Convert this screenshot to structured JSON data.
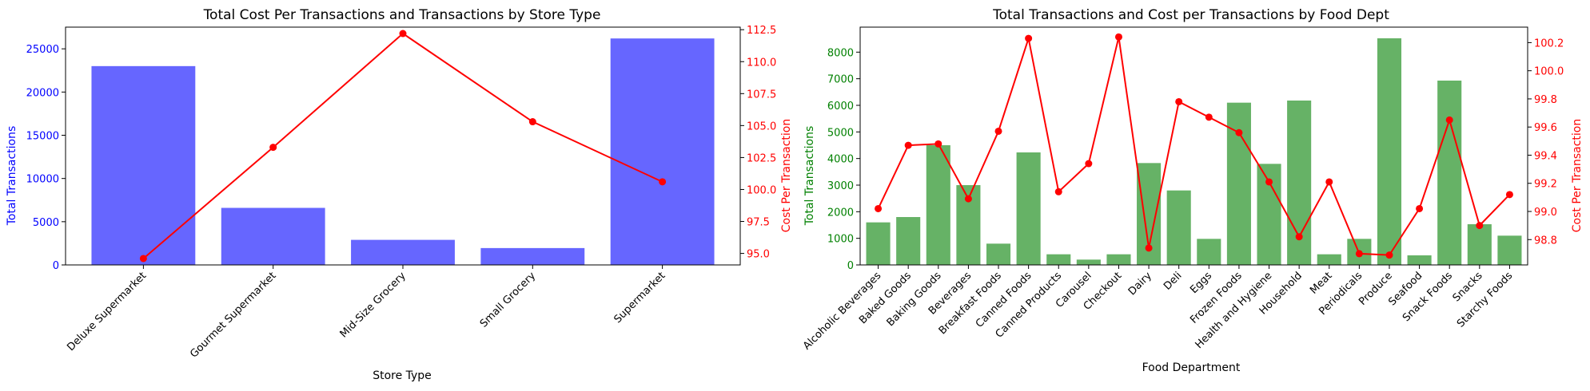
{
  "colors": {
    "bars_left": "#6666ff",
    "bars_right": "#66b266",
    "line": "#ff0000",
    "axis_left_text": "#0000ff",
    "axis_right_text": "#ff0000",
    "axis_left_text_right_panel": "#008000",
    "frame": "#000000"
  },
  "chart_data": [
    {
      "type": "bar",
      "title": "Total Cost Per Transactions and Transactions by Store Type",
      "xlabel": "Store Type",
      "ylabel": "Total Transactions",
      "y2label": "Cost Per Transaction",
      "categories": [
        "Deluxe Supermarket",
        "Gourmet Supermarket",
        "Mid-Size Grocery",
        "Small Grocery",
        "Supermarket"
      ],
      "bars": {
        "values": [
          23000,
          6600,
          2900,
          1950,
          26200
        ]
      },
      "line": {
        "values": [
          94.6,
          103.3,
          112.2,
          105.3,
          100.6
        ]
      },
      "ylim": [
        0,
        27510
      ],
      "y2lim": [
        94.1,
        112.7
      ],
      "yticks": [
        0,
        5000,
        10000,
        15000,
        20000,
        25000
      ],
      "y2ticks": [
        95.0,
        97.5,
        100.0,
        102.5,
        105.0,
        107.5,
        110.0,
        112.5
      ],
      "y2tick_labels": [
        "95.0",
        "97.5",
        "100.0",
        "102.5",
        "105.0",
        "107.5",
        "110.0",
        "112.5"
      ]
    },
    {
      "type": "bar",
      "title": "Total Transactions and Cost per Transactions by Food Dept",
      "xlabel": "Food Department",
      "ylabel": "Total Transactions",
      "y2label": "Cost Per Transaction",
      "categories": [
        "Alcoholic Beverages",
        "Baked Goods",
        "Baking Goods",
        "Beverages",
        "Breakfast Foods",
        "Canned Foods",
        "Canned Products",
        "Carousel",
        "Checkout",
        "Dairy",
        "Deli",
        "Eggs",
        "Frozen Foods",
        "Health and Hygiene",
        "Household",
        "Meat",
        "Periodicals",
        "Produce",
        "Seafood",
        "Snack Foods",
        "Snacks",
        "Starchy Foods"
      ],
      "bars": {
        "values": [
          1600,
          1800,
          4500,
          3000,
          800,
          4230,
          400,
          200,
          400,
          3830,
          2800,
          980,
          6100,
          3800,
          6180,
          400,
          980,
          8520,
          360,
          6930,
          1530,
          1100
        ]
      },
      "line": {
        "values": [
          99.02,
          99.47,
          99.48,
          99.09,
          99.57,
          100.23,
          99.14,
          99.34,
          100.24,
          98.74,
          99.78,
          99.67,
          99.56,
          99.21,
          98.82,
          99.21,
          98.7,
          98.69,
          99.02,
          99.65,
          98.9,
          99.12
        ]
      },
      "ylim": [
        0,
        8940
      ],
      "y2lim": [
        98.62,
        100.31
      ],
      "yticks": [
        0,
        1000,
        2000,
        3000,
        4000,
        5000,
        6000,
        7000,
        8000
      ],
      "y2ticks": [
        98.8,
        99.0,
        99.2,
        99.4,
        99.6,
        99.8,
        100.0,
        100.2
      ],
      "y2tick_labels": [
        "98.8",
        "99.0",
        "99.2",
        "99.4",
        "99.6",
        "99.8",
        "100.0",
        "100.2"
      ]
    }
  ]
}
